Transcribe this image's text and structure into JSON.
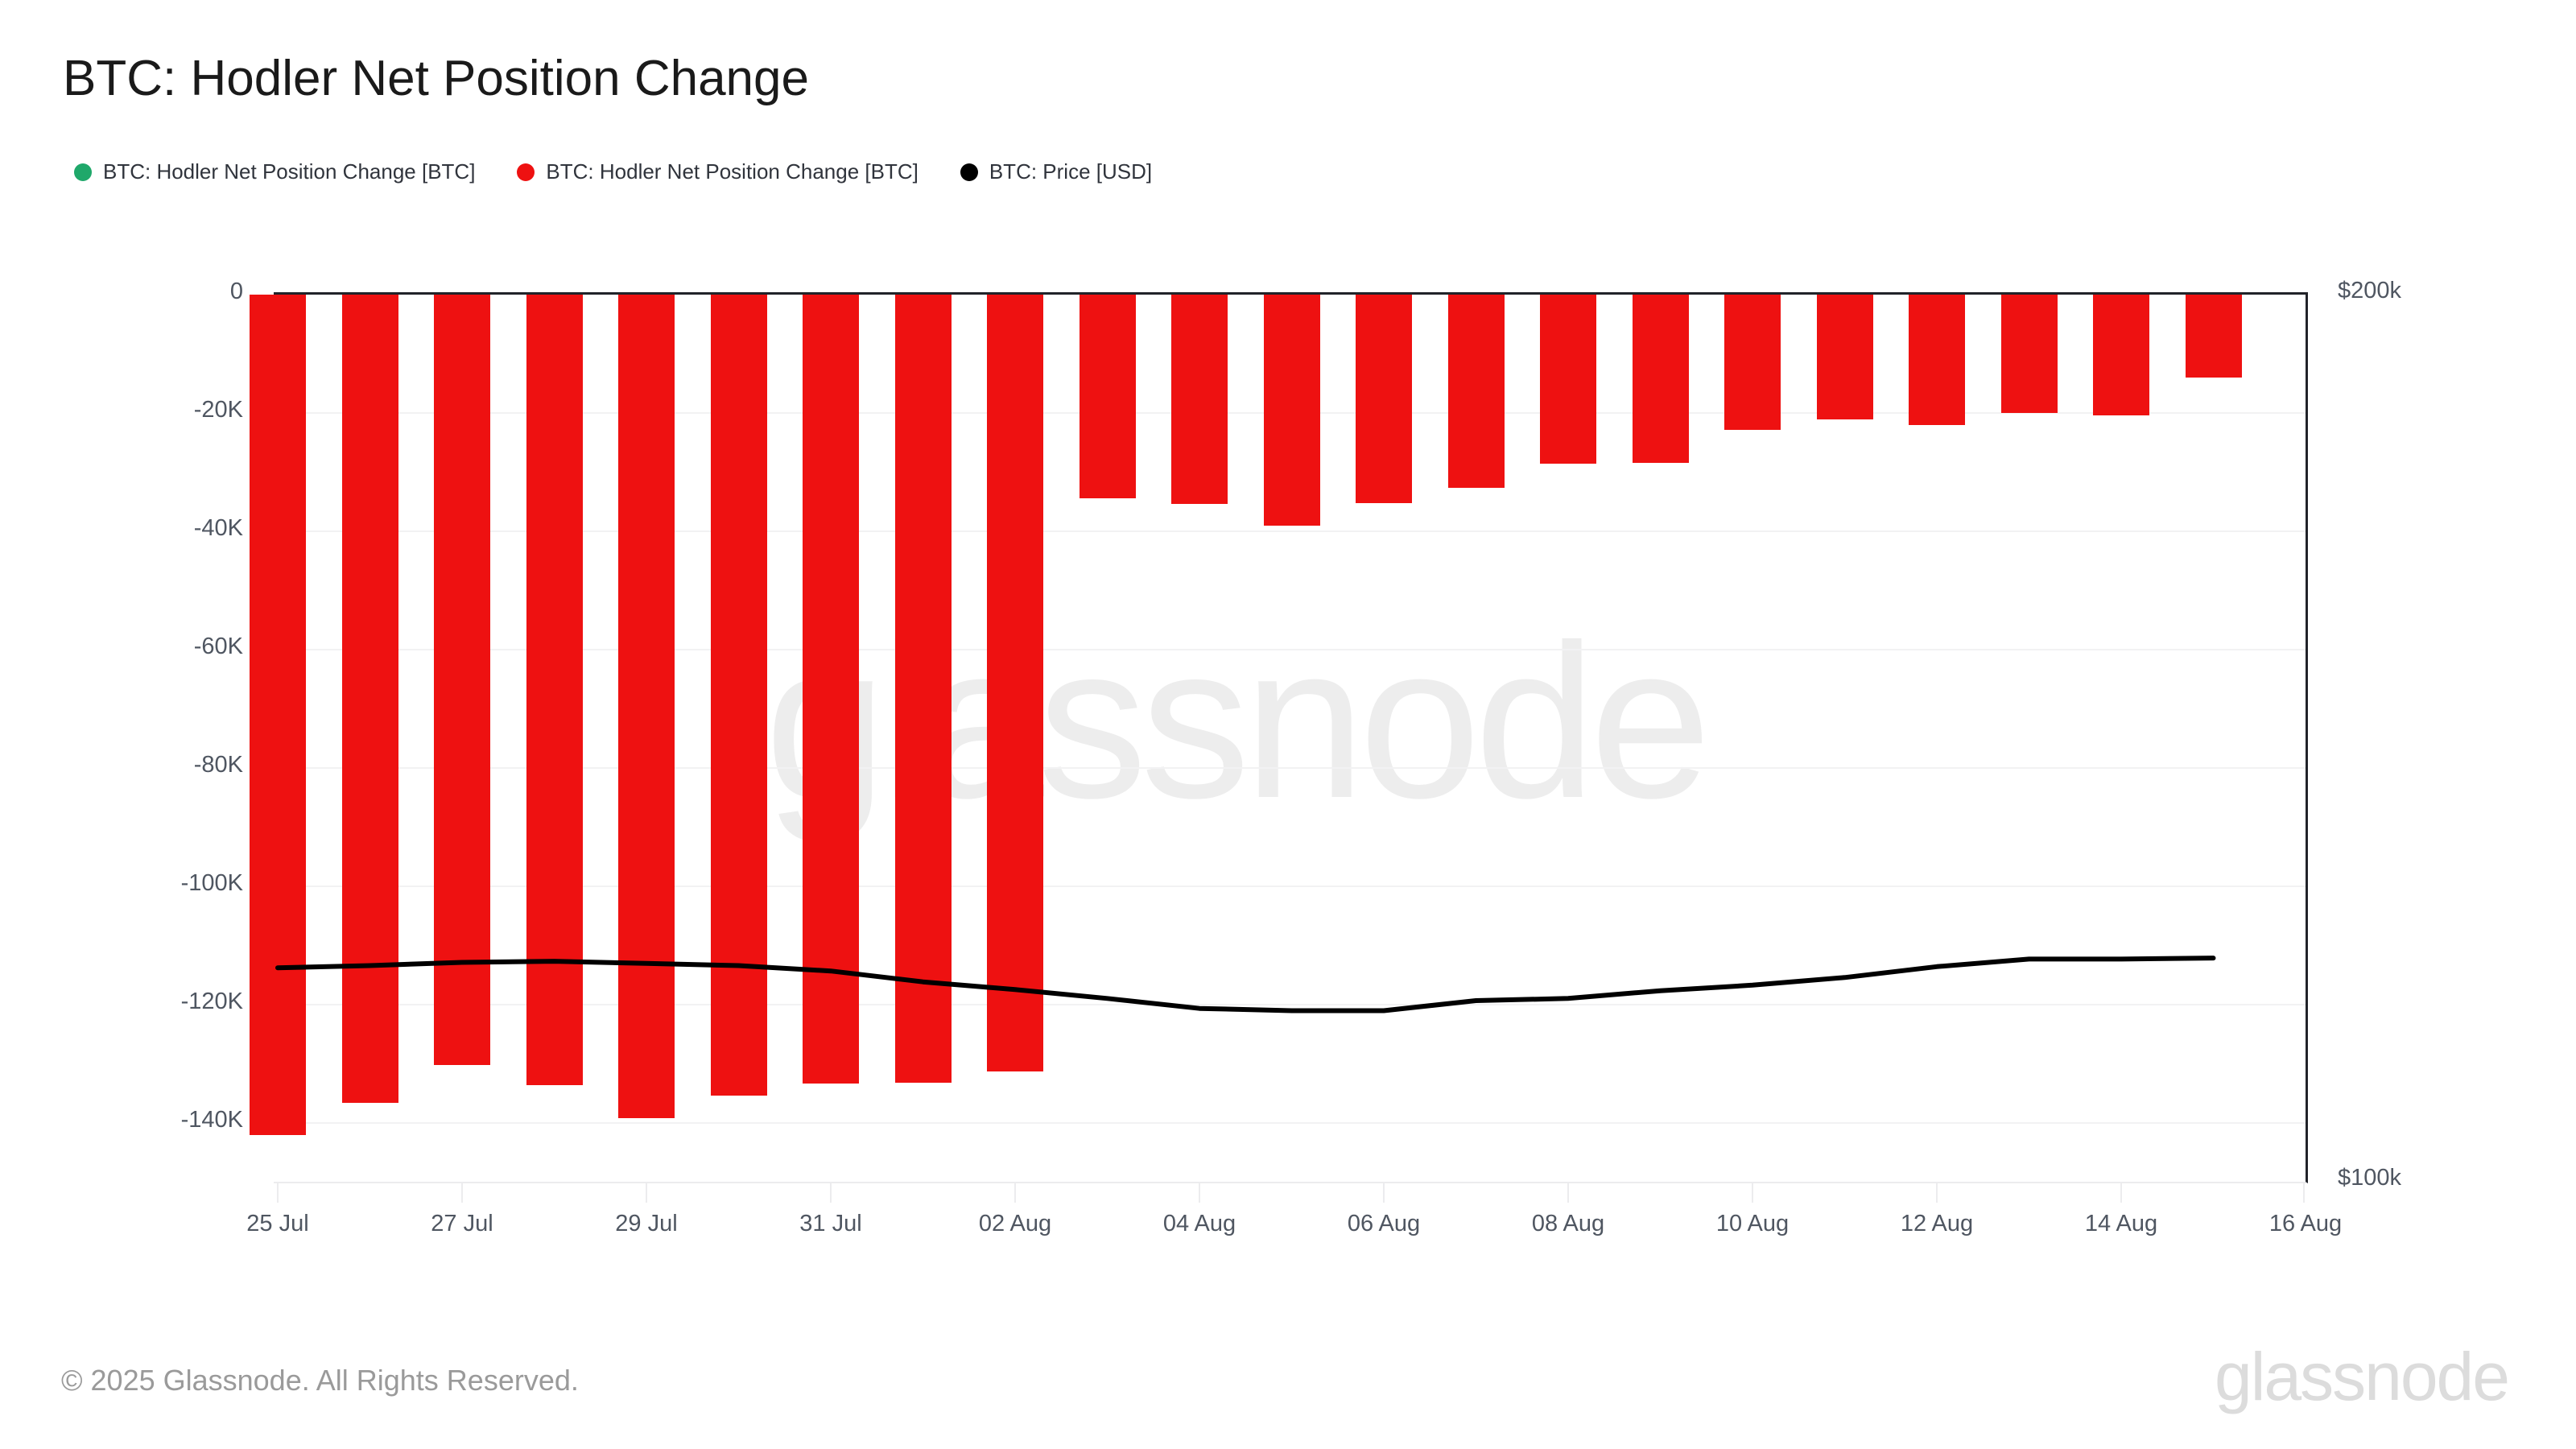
{
  "page": {
    "title": "BTC: Hodler Net Position Change",
    "footer_copyright": "© 2025 Glassnode. All Rights Reserved.",
    "brand_wordmark": "glassnode",
    "watermark": "glassnode"
  },
  "legend": {
    "items": [
      {
        "label": "BTC: Hodler Net Position Change [BTC]",
        "color": "#1fa86a"
      },
      {
        "label": "BTC: Hodler Net Position Change [BTC]",
        "color": "#ee1111"
      },
      {
        "label": "BTC: Price [USD]",
        "color": "#000000"
      }
    ]
  },
  "chart_data": {
    "type": "bar+line",
    "title": "BTC: Hodler Net Position Change",
    "categories": [
      "25 Jul",
      "26 Jul",
      "27 Jul",
      "28 Jul",
      "29 Jul",
      "30 Jul",
      "31 Jul",
      "01 Aug",
      "02 Aug",
      "03 Aug",
      "04 Aug",
      "05 Aug",
      "06 Aug",
      "07 Aug",
      "08 Aug",
      "09 Aug",
      "10 Aug",
      "11 Aug",
      "12 Aug",
      "13 Aug",
      "14 Aug",
      "15 Aug"
    ],
    "series": [
      {
        "name": "BTC: Hodler Net Position Change [BTC]",
        "type": "bar",
        "axis": "left",
        "color_positive": "#1fa86a",
        "color_negative": "#ee1111",
        "values": [
          -142100,
          -136700,
          -130300,
          -133700,
          -139200,
          -135400,
          -133400,
          -133200,
          -131300,
          -34400,
          -35400,
          -39100,
          -35300,
          -32600,
          -28600,
          -28500,
          -22900,
          -21100,
          -22000,
          -20000,
          -20400,
          -14000
        ]
      },
      {
        "name": "BTC: Price [USD]",
        "type": "line",
        "axis": "right",
        "color": "#000000",
        "values": [
          118200,
          118400,
          118700,
          118800,
          118600,
          118400,
          117900,
          116900,
          116200,
          115400,
          114500,
          114300,
          114300,
          115200,
          115400,
          116100,
          116600,
          117300,
          118300,
          119000,
          119000,
          119100
        ]
      }
    ],
    "left_axis": {
      "tick_labels": [
        "0",
        "-20K",
        "-40K",
        "-60K",
        "-80K",
        "-100K",
        "-120K",
        "-140K"
      ],
      "tick_values": [
        0,
        -20000,
        -40000,
        -60000,
        -80000,
        -100000,
        -120000,
        -140000
      ],
      "min": -150000,
      "max": 0
    },
    "right_axis": {
      "tick_labels": [
        "$200k",
        "$100k"
      ],
      "min": 100000,
      "max": 200000,
      "scale": "log"
    },
    "x_axis": {
      "tick_labels": [
        "25 Jul",
        "27 Jul",
        "29 Jul",
        "31 Jul",
        "02 Aug",
        "04 Aug",
        "06 Aug",
        "08 Aug",
        "10 Aug",
        "12 Aug",
        "14 Aug",
        "16 Aug"
      ]
    },
    "grid": "horizontal-only",
    "legend_position": "top-left"
  }
}
